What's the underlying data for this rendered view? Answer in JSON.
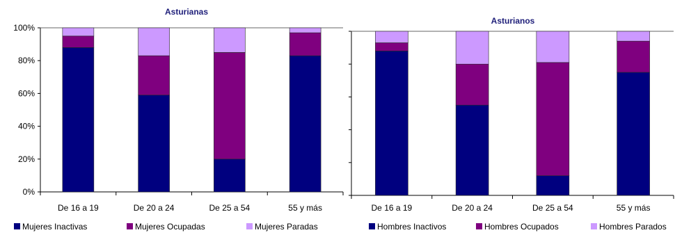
{
  "colors": {
    "inactive": "#00007f",
    "employed": "#7f007f",
    "unemployed": "#cc99ff",
    "axis": "#000000",
    "title": "#1f1f7a"
  },
  "chart_data": [
    {
      "type": "bar",
      "stacked": true,
      "title": "Asturianas",
      "categories": [
        "De 16 a 19",
        "De 20 a 24",
        "De 25 a 54",
        "55 y más"
      ],
      "yticks": [
        "0%",
        "20%",
        "40%",
        "60%",
        "80%",
        "100%"
      ],
      "ylim": [
        0,
        100
      ],
      "y_unit": "%",
      "series": [
        {
          "name": "Mujeres Inactivas",
          "values": [
            88,
            59,
            20,
            83
          ]
        },
        {
          "name": "Mujeres Ocupadas",
          "values": [
            7,
            24,
            65,
            14
          ]
        },
        {
          "name": "Mujeres Paradas",
          "values": [
            5,
            17,
            15,
            3
          ]
        }
      ],
      "legend": "bottom"
    },
    {
      "type": "bar",
      "stacked": true,
      "title": "Asturianos",
      "categories": [
        "De 16 a 19",
        "De 20 a 24",
        "De 25 a 54",
        "55 y más"
      ],
      "ylim": [
        0,
        100
      ],
      "y_unit": "%",
      "series": [
        {
          "name": "Hombres Inactivos",
          "values": [
            88,
            55,
            12,
            75
          ]
        },
        {
          "name": "Hombres Ocupados",
          "values": [
            5,
            25,
            69,
            19
          ]
        },
        {
          "name": "Hombres Parados",
          "values": [
            7,
            20,
            19,
            6
          ]
        }
      ],
      "legend": "bottom"
    }
  ]
}
